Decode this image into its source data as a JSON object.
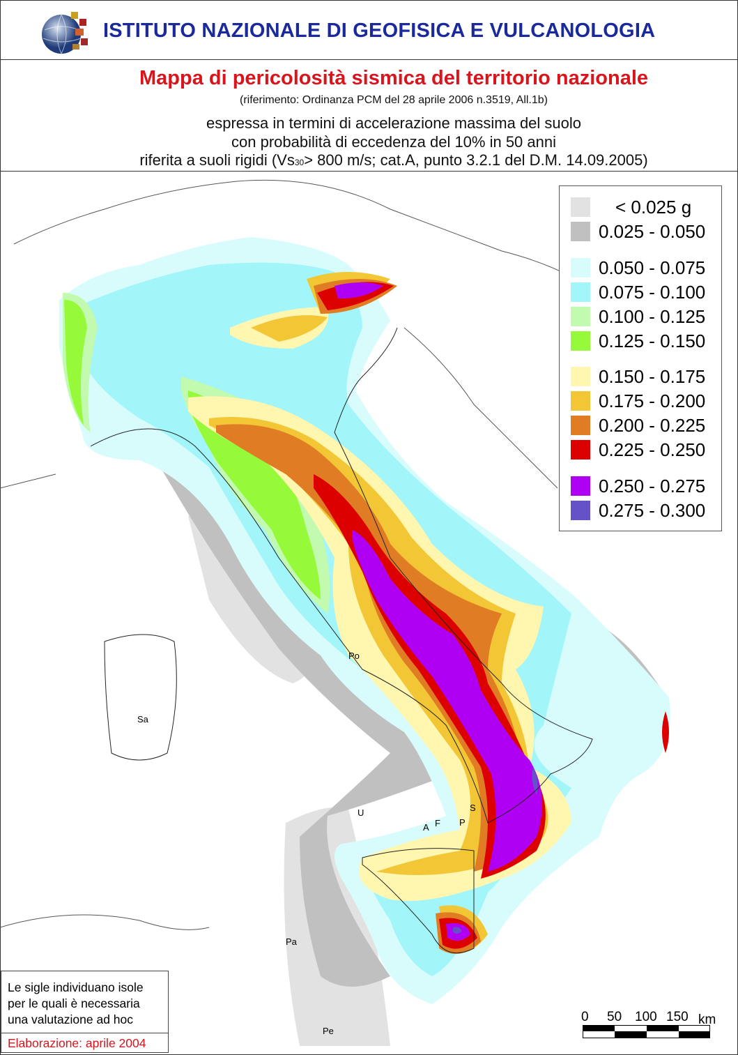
{
  "header": {
    "organization": "ISTITUTO NAZIONALE DI GEOFISICA E VULCANOLOGIA",
    "title": "Mappa di pericolosità sismica del territorio nazionale",
    "reference": "(riferimento: Ordinanza PCM del 28 aprile 2006 n.3519, All.1b)",
    "subtitle_lines": [
      "espressa in termini di accelerazione massima del suolo",
      "con probabilità di eccedenza del 10% in 50 anni",
      "riferita a suoli rigidi (Vs",
      "30",
      "> 800 m/s; cat.A, punto 3.2.1 del D.M. 14.09.2005)"
    ]
  },
  "legend": {
    "items": [
      {
        "label": "< 0.025 g",
        "color": "#e2e2e2"
      },
      {
        "label": "0.025 - 0.050",
        "color": "#c0c0c0"
      },
      {
        "label": "0.050 - 0.075",
        "color": "#d8fcfc"
      },
      {
        "label": "0.075 - 0.100",
        "color": "#a2f6fa"
      },
      {
        "label": "0.100 - 0.125",
        "color": "#c2fab0"
      },
      {
        "label": "0.125 - 0.150",
        "color": "#96fa3a"
      },
      {
        "label": "0.150 - 0.175",
        "color": "#fff6b0"
      },
      {
        "label": "0.175 - 0.200",
        "color": "#f2c634"
      },
      {
        "label": "0.200 - 0.225",
        "color": "#e07c24"
      },
      {
        "label": "0.225 - 0.250",
        "color": "#dc0000"
      },
      {
        "label": "0.250 - 0.275",
        "color": "#b000f4"
      },
      {
        "label": "0.275 - 0.300",
        "color": "#6652c8"
      }
    ]
  },
  "islands": [
    "Po",
    "Sa",
    "U",
    "S",
    "A",
    "F",
    "P",
    "Pa",
    "Pe"
  ],
  "note": {
    "lines": [
      "Le sigle individuano isole",
      "per le quali è necessaria",
      "una valutazione ad hoc"
    ],
    "elaboration": "Elaborazione: aprile 2004"
  },
  "scale_bar": {
    "ticks": [
      "0",
      "50",
      "100",
      "150"
    ],
    "unit": "km"
  }
}
